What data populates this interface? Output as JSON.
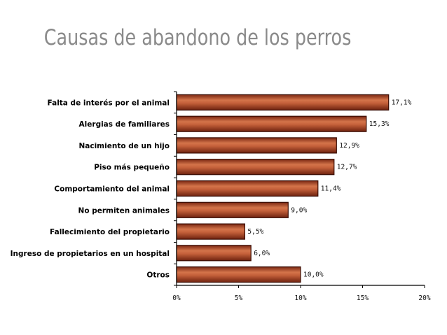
{
  "chart_data": {
    "type": "bar",
    "orientation": "horizontal",
    "title": "Causas de abandono de los perros",
    "categories": [
      "Falta de interés por el animal",
      "Alergias de familiares",
      "Nacimiento de un hijo",
      "Piso más pequeño",
      "Comportamiento del animal",
      "No permiten animales",
      "Fallecimiento del propietario",
      "Ingreso de propietarios en un hospital",
      "Otros"
    ],
    "values": [
      17.1,
      15.3,
      12.9,
      12.7,
      11.4,
      9.0,
      5.5,
      6.0,
      10.0
    ],
    "value_labels": [
      "17,1%",
      "15,3%",
      "12,9%",
      "12,7%",
      "11,4%",
      "9,0%",
      "5,5%",
      "6,0%",
      "10,0%"
    ],
    "xlim": [
      0,
      20
    ],
    "xticks": [
      0,
      5,
      10,
      15,
      20
    ],
    "xtick_labels": [
      "0%",
      "5%",
      "10%",
      "15%",
      "20%"
    ],
    "xlabel": "",
    "ylabel": "",
    "grid": false,
    "bar_color": "#b5502a"
  }
}
